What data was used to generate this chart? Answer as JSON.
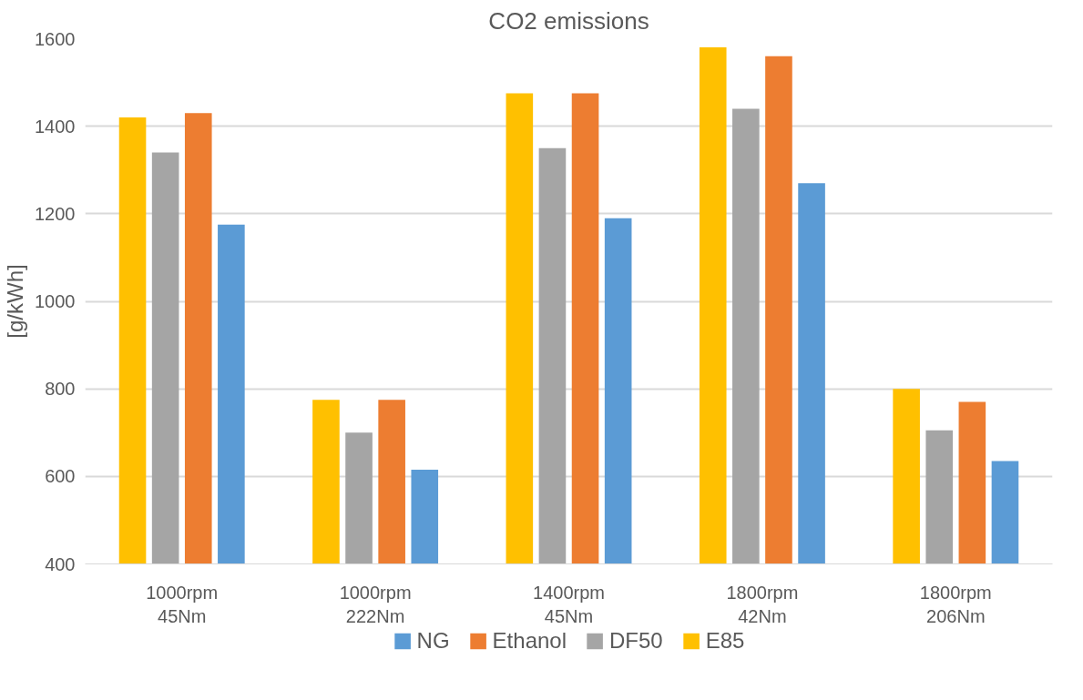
{
  "chart_data": {
    "type": "bar",
    "title": "CO2 emissions",
    "ylabel": "[g/kWh]",
    "categories": [
      "1000rpm\n45Nm",
      "1000rpm\n222Nm",
      "1400rpm\n45Nm",
      "1800rpm\n42Nm",
      "1800rpm\n206Nm"
    ],
    "series": [
      {
        "name": "E85",
        "color": "#ffc000",
        "values": [
          1420,
          775,
          1475,
          1580,
          800
        ]
      },
      {
        "name": "DF50",
        "color": "#a5a5a5",
        "values": [
          1340,
          700,
          1350,
          1440,
          705
        ]
      },
      {
        "name": "Ethanol",
        "color": "#ed7d31",
        "values": [
          1430,
          775,
          1475,
          1560,
          770
        ]
      },
      {
        "name": "NG",
        "color": "#5b9bd5",
        "values": [
          1175,
          615,
          1190,
          1270,
          635
        ]
      }
    ],
    "ylim": [
      400,
      1600
    ],
    "yticks": [
      400,
      600,
      800,
      1000,
      1200,
      1400,
      1600
    ],
    "grid": "y",
    "legend": "bottom"
  }
}
